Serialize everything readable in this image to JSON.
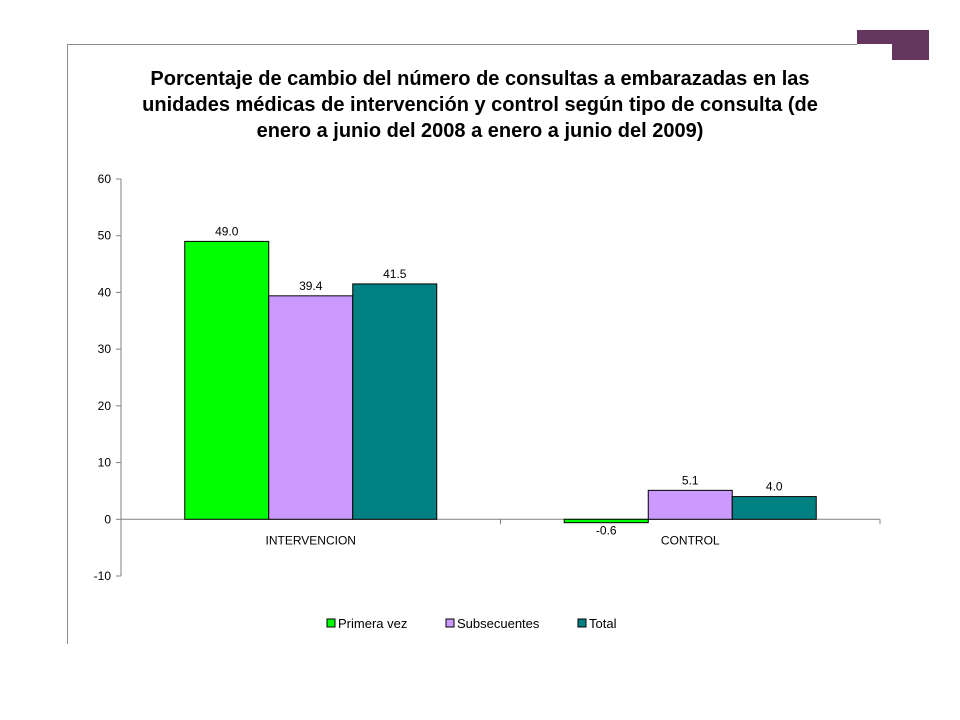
{
  "slide": {
    "accent_color": "#64355e"
  },
  "chart_data": {
    "type": "bar",
    "title": "Porcentaje de cambio del número de consultas  a embarazadas en  las  unidades  médicas  de  intervención y control según tipo de consulta (de enero a junio del 2008 a enero a junio del 2009)",
    "categories": [
      "INTERVENCION",
      "CONTROL"
    ],
    "series": [
      {
        "name": "Primera vez",
        "values": [
          49.0,
          -0.6
        ],
        "labels": [
          "49.0",
          "-0.6"
        ],
        "color": "#00ff00"
      },
      {
        "name": "Subsecuentes",
        "values": [
          39.4,
          5.1
        ],
        "labels": [
          "39.4",
          "5.1"
        ],
        "color": "#cc99ff"
      },
      {
        "name": "Total",
        "values": [
          41.5,
          4.0
        ],
        "labels": [
          "41.5",
          "4.0"
        ],
        "color": "#008080"
      }
    ],
    "ylim": [
      -10,
      60
    ],
    "yticks": [
      "60",
      "50",
      "40",
      "30",
      "20",
      "10",
      "0",
      "-10"
    ],
    "ytick_values": [
      60,
      50,
      40,
      30,
      20,
      10,
      0,
      -10
    ],
    "xlabel": "",
    "ylabel": "",
    "legend_position": "bottom",
    "grid": false
  }
}
